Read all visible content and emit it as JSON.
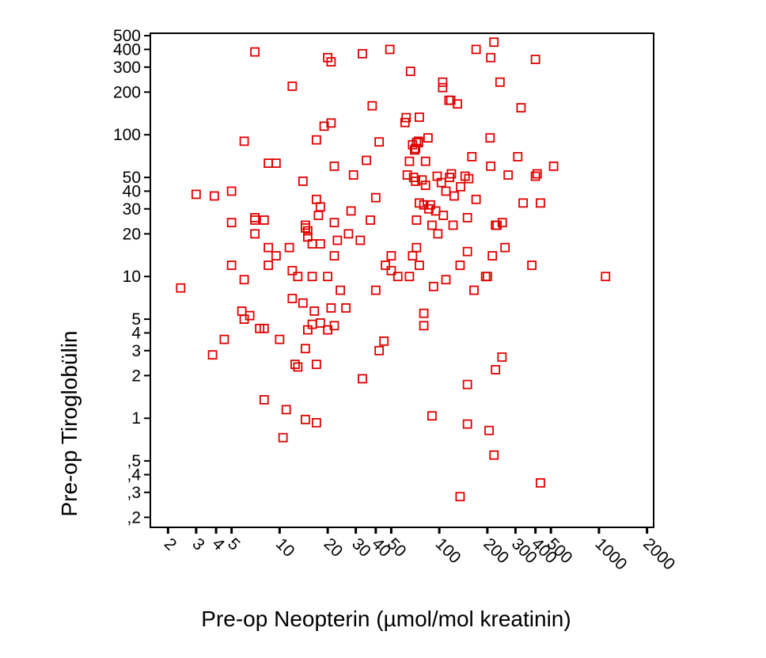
{
  "chart_data": {
    "type": "scatter",
    "title": "",
    "xlabel": "Pre-op Neopterin (µmol/mol kreatinin)",
    "ylabel": "Pre-op Tiroglobülin",
    "x_scale": "log",
    "y_scale": "log",
    "xlim": [
      1.55,
      2200
    ],
    "ylim": [
      0.17,
      520
    ],
    "grid": false,
    "legend": "none",
    "marker": "open-square",
    "marker_color": "#e00000",
    "x_ticks": [
      {
        "value": 2,
        "label": "2"
      },
      {
        "value": 3,
        "label": "3"
      },
      {
        "value": 4,
        "label": "4"
      },
      {
        "value": 5,
        "label": "5"
      },
      {
        "value": 10,
        "label": "10"
      },
      {
        "value": 20,
        "label": "20"
      },
      {
        "value": 30,
        "label": "30"
      },
      {
        "value": 40,
        "label": "40"
      },
      {
        "value": 50,
        "label": "50"
      },
      {
        "value": 100,
        "label": "100"
      },
      {
        "value": 200,
        "label": "200"
      },
      {
        "value": 300,
        "label": "300"
      },
      {
        "value": 400,
        "label": "400"
      },
      {
        "value": 500,
        "label": "500"
      },
      {
        "value": 1000,
        "label": "1000"
      },
      {
        "value": 2000,
        "label": "2000"
      }
    ],
    "y_ticks": [
      {
        "value": 500,
        "label": "500"
      },
      {
        "value": 400,
        "label": "400"
      },
      {
        "value": 300,
        "label": "300"
      },
      {
        "value": 200,
        "label": "200"
      },
      {
        "value": 100,
        "label": "100"
      },
      {
        "value": 50,
        "label": "50"
      },
      {
        "value": 40,
        "label": "40"
      },
      {
        "value": 30,
        "label": "30"
      },
      {
        "value": 20,
        "label": "20"
      },
      {
        "value": 10,
        "label": "10"
      },
      {
        "value": 5,
        "label": "5"
      },
      {
        "value": 4,
        "label": "4"
      },
      {
        "value": 3,
        "label": "3"
      },
      {
        "value": 2,
        "label": "2"
      },
      {
        "value": 1,
        "label": "1"
      },
      {
        "value": 0.5,
        "label": ",5"
      },
      {
        "value": 0.4,
        "label": ",4"
      },
      {
        "value": 0.3,
        "label": ",3"
      },
      {
        "value": 0.2,
        "label": ",2"
      }
    ],
    "points": [
      [
        7,
        384
      ],
      [
        20,
        350
      ],
      [
        21,
        327
      ],
      [
        33,
        373
      ],
      [
        49,
        400
      ],
      [
        170,
        400
      ],
      [
        220,
        450
      ],
      [
        210,
        350
      ],
      [
        400,
        340
      ],
      [
        12,
        220
      ],
      [
        66,
        280
      ],
      [
        105,
        235
      ],
      [
        105,
        215
      ],
      [
        115,
        175
      ],
      [
        118,
        175
      ],
      [
        130,
        165
      ],
      [
        38,
        160
      ],
      [
        325,
        155
      ],
      [
        240,
        235
      ],
      [
        6,
        90
      ],
      [
        8.5,
        63
      ],
      [
        9.5,
        63
      ],
      [
        19,
        115
      ],
      [
        21,
        121
      ],
      [
        17,
        92
      ],
      [
        42,
        89
      ],
      [
        61,
        122
      ],
      [
        62,
        132
      ],
      [
        75,
        133
      ],
      [
        72,
        88
      ],
      [
        74,
        88
      ],
      [
        71,
        80
      ],
      [
        85,
        95
      ],
      [
        65,
        65
      ],
      [
        68,
        85
      ],
      [
        70,
        78
      ],
      [
        74,
        90
      ],
      [
        82,
        65
      ],
      [
        3,
        38
      ],
      [
        3.9,
        37
      ],
      [
        7,
        26
      ],
      [
        8,
        25
      ],
      [
        5,
        40
      ],
      [
        5,
        24
      ],
      [
        7,
        20
      ],
      [
        8.5,
        16
      ],
      [
        9.5,
        14
      ],
      [
        8.5,
        12
      ],
      [
        11.5,
        16
      ],
      [
        14,
        47
      ],
      [
        17,
        35
      ],
      [
        17.5,
        27
      ],
      [
        18,
        31
      ],
      [
        14.5,
        23
      ],
      [
        14.5,
        22
      ],
      [
        15,
        21
      ],
      [
        15,
        19
      ],
      [
        16,
        17
      ],
      [
        18,
        17
      ],
      [
        22,
        24
      ],
      [
        23,
        18
      ],
      [
        22,
        14
      ],
      [
        22,
        60
      ],
      [
        29,
        52
      ],
      [
        28,
        29
      ],
      [
        27,
        20
      ],
      [
        32,
        18
      ],
      [
        35,
        66
      ],
      [
        37,
        25
      ],
      [
        40,
        36
      ],
      [
        50,
        14
      ],
      [
        46,
        12
      ],
      [
        50,
        11
      ],
      [
        63,
        52
      ],
      [
        69,
        50
      ],
      [
        71,
        47
      ],
      [
        72,
        25
      ],
      [
        68,
        14
      ],
      [
        72,
        16
      ],
      [
        75,
        33
      ],
      [
        78,
        48
      ],
      [
        80,
        32
      ],
      [
        82,
        44
      ],
      [
        86,
        30
      ],
      [
        88,
        32
      ],
      [
        90,
        23
      ],
      [
        95,
        29
      ],
      [
        98,
        20
      ],
      [
        97,
        51
      ],
      [
        103,
        46
      ],
      [
        106,
        27
      ],
      [
        110,
        40
      ],
      [
        116,
        50
      ],
      [
        119,
        53
      ],
      [
        122,
        23
      ],
      [
        124,
        37
      ],
      [
        136,
        43
      ],
      [
        145,
        51
      ],
      [
        150,
        26
      ],
      [
        153,
        49
      ],
      [
        170,
        35
      ],
      [
        160,
        70
      ],
      [
        208,
        95
      ],
      [
        210,
        60
      ],
      [
        230,
        23
      ],
      [
        248,
        24
      ],
      [
        258,
        16
      ],
      [
        270,
        52
      ],
      [
        310,
        70
      ],
      [
        335,
        33
      ],
      [
        380,
        12
      ],
      [
        400,
        51
      ],
      [
        410,
        53
      ],
      [
        430,
        33
      ],
      [
        520,
        60
      ],
      [
        1100,
        10
      ],
      [
        7,
        25
      ],
      [
        2.4,
        8.3
      ],
      [
        5,
        12
      ],
      [
        6,
        9.5
      ],
      [
        12,
        11
      ],
      [
        13,
        10
      ],
      [
        16,
        10
      ],
      [
        20,
        10
      ],
      [
        21,
        6
      ],
      [
        24,
        8
      ],
      [
        18,
        4.7
      ],
      [
        26,
        6
      ],
      [
        16.5,
        5.7
      ],
      [
        16,
        4.6
      ],
      [
        14,
        6.5
      ],
      [
        12,
        7
      ],
      [
        15,
        4.2
      ],
      [
        14.5,
        3.1
      ],
      [
        10,
        3.6
      ],
      [
        3.8,
        2.8
      ],
      [
        4.5,
        3.6
      ],
      [
        5.8,
        5.7
      ],
      [
        6,
        5
      ],
      [
        6.5,
        5.3
      ],
      [
        7.5,
        4.3
      ],
      [
        8,
        4.3
      ],
      [
        17,
        2.4
      ],
      [
        12.5,
        2.4
      ],
      [
        13,
        2.3
      ],
      [
        40,
        8
      ],
      [
        55,
        10
      ],
      [
        65,
        10
      ],
      [
        75,
        12
      ],
      [
        80,
        4.5
      ],
      [
        80,
        5.5
      ],
      [
        92,
        8.5
      ],
      [
        110,
        9.5
      ],
      [
        135,
        12
      ],
      [
        150,
        15
      ],
      [
        165,
        8
      ],
      [
        195,
        10
      ],
      [
        200,
        10
      ],
      [
        215,
        14
      ],
      [
        225,
        23
      ],
      [
        247,
        2.7
      ],
      [
        225,
        2.2
      ],
      [
        90,
        1.04
      ],
      [
        150,
        1.73
      ],
      [
        33,
        1.9
      ],
      [
        42,
        3
      ],
      [
        45,
        3.5
      ],
      [
        20,
        4.2
      ],
      [
        22,
        4.5
      ],
      [
        8,
        1.35
      ],
      [
        11,
        1.15
      ],
      [
        10.5,
        0.73
      ],
      [
        14.5,
        0.98
      ],
      [
        17,
        0.93
      ],
      [
        150,
        0.91
      ],
      [
        205,
        0.82
      ],
      [
        220,
        0.55
      ],
      [
        135,
        0.28
      ],
      [
        430,
        0.35
      ]
    ]
  }
}
